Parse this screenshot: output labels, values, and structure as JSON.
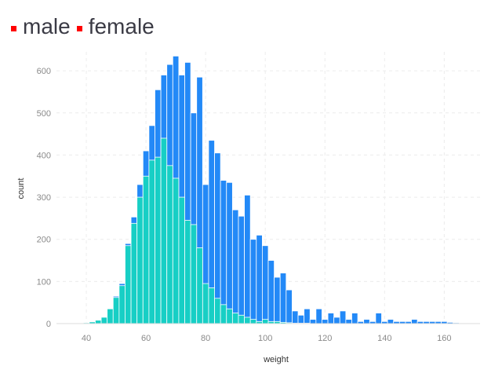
{
  "legend": {
    "position": "top-left",
    "items": [
      {
        "label": "male",
        "color": "#ff0000"
      },
      {
        "label": "female",
        "color": "#ff0000"
      }
    ]
  },
  "colors": {
    "male": "#2389f7",
    "female": "#17cfc5",
    "grid": "#ececec",
    "axis_text": "#8a8a8a",
    "label_text": "#333333"
  },
  "chart_data": {
    "type": "bar",
    "xlabel": "weight",
    "ylabel": "count",
    "xlim": [
      30,
      172
    ],
    "ylim": [
      0,
      645
    ],
    "xticks": [
      40,
      60,
      80,
      100,
      120,
      140,
      160
    ],
    "yticks": [
      0,
      100,
      200,
      300,
      400,
      500,
      600
    ],
    "grid": true,
    "series": [
      {
        "name": "male",
        "x": [
          40,
          42,
          44,
          46,
          48,
          50,
          52,
          54,
          56,
          58,
          60,
          62,
          64,
          66,
          68,
          70,
          72,
          74,
          76,
          78,
          80,
          82,
          84,
          86,
          88,
          90,
          92,
          94,
          96,
          98,
          100,
          102,
          104,
          106,
          108,
          110,
          112,
          114,
          116,
          118,
          120,
          122,
          124,
          126,
          128,
          130,
          132,
          134,
          136,
          138,
          140,
          142,
          144,
          146,
          148,
          150,
          152,
          154,
          156,
          158,
          160,
          162,
          164
        ],
        "values": [
          2,
          4,
          8,
          15,
          35,
          65,
          95,
          190,
          253,
          330,
          410,
          470,
          555,
          590,
          615,
          635,
          590,
          620,
          500,
          585,
          330,
          435,
          405,
          340,
          335,
          270,
          255,
          305,
          200,
          210,
          185,
          150,
          110,
          120,
          80,
          30,
          20,
          35,
          10,
          35,
          10,
          25,
          15,
          30,
          10,
          25,
          5,
          10,
          5,
          25,
          5,
          10,
          5,
          5,
          5,
          10,
          5,
          5,
          5,
          5,
          5,
          3,
          2
        ]
      },
      {
        "name": "female",
        "x": [
          40,
          42,
          44,
          46,
          48,
          50,
          52,
          54,
          56,
          58,
          60,
          62,
          64,
          66,
          68,
          70,
          72,
          74,
          76,
          78,
          80,
          82,
          84,
          86,
          88,
          90,
          92,
          94,
          96,
          98,
          100,
          102,
          104,
          106,
          108,
          110,
          112,
          114,
          116,
          118,
          120,
          122,
          124,
          126,
          128,
          130,
          132,
          134,
          136,
          138,
          140,
          142,
          144,
          146,
          148,
          150,
          152,
          154,
          156,
          158,
          160,
          162,
          164
        ],
        "values": [
          2,
          4,
          8,
          15,
          35,
          62,
          90,
          185,
          238,
          300,
          350,
          388,
          395,
          440,
          375,
          345,
          300,
          245,
          235,
          180,
          95,
          85,
          60,
          45,
          35,
          25,
          20,
          15,
          10,
          5,
          10,
          5,
          5,
          3,
          2,
          1,
          1,
          1,
          0,
          0,
          0,
          0,
          0,
          0,
          0,
          0,
          0,
          0,
          0,
          0,
          0,
          0,
          0,
          0,
          0,
          0,
          0,
          0,
          0,
          0,
          0,
          0,
          0
        ]
      }
    ]
  }
}
